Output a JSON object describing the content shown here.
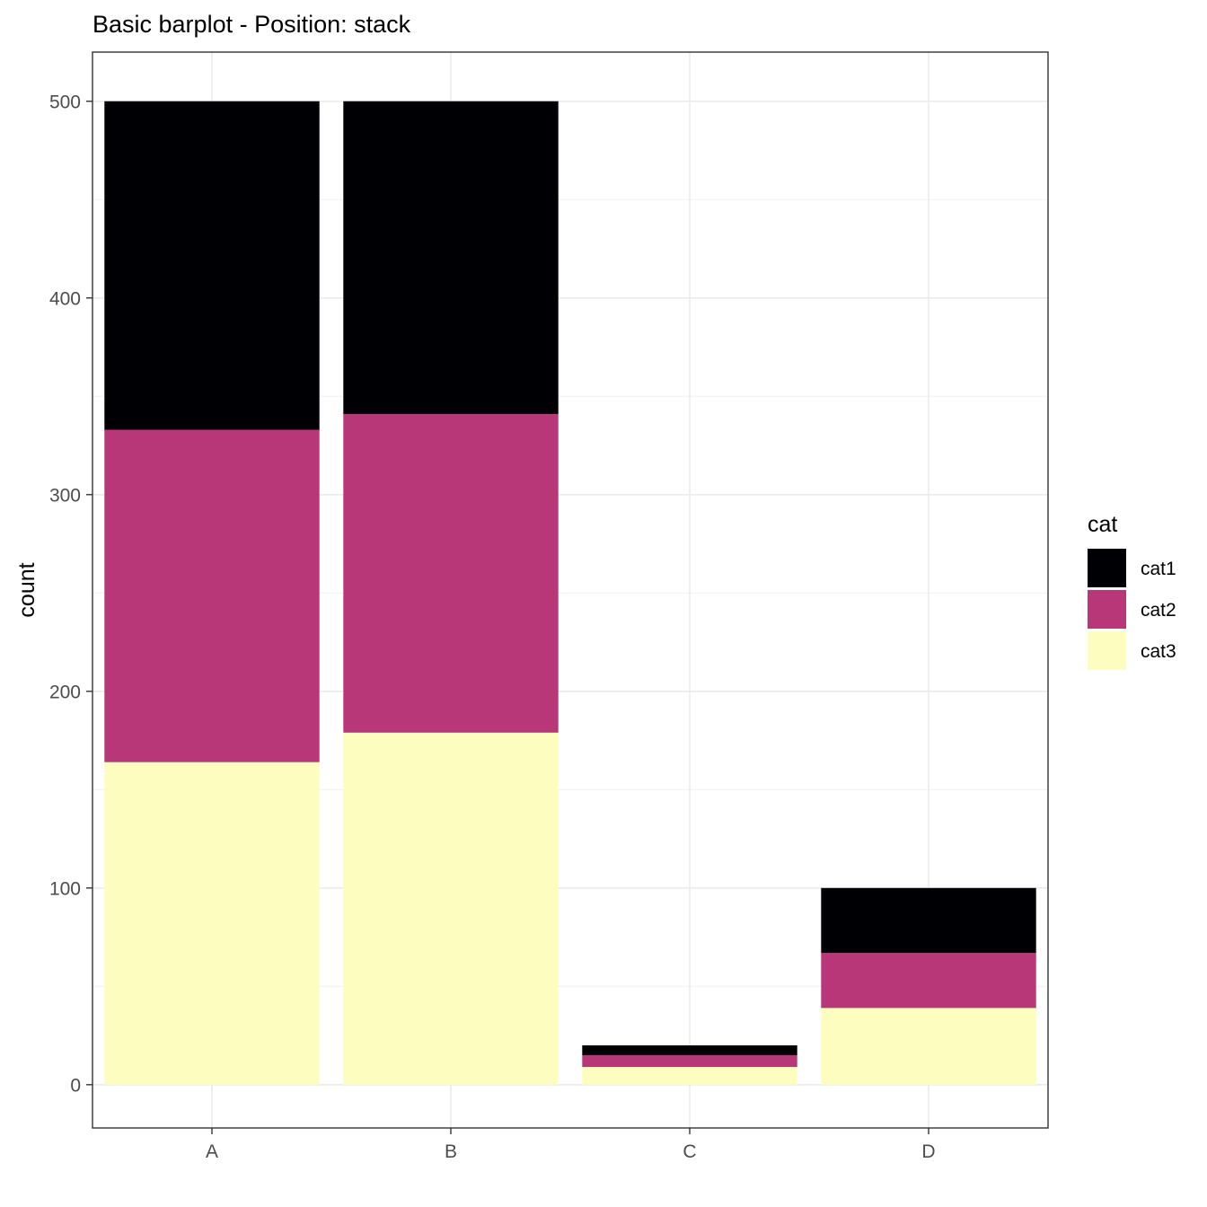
{
  "chart_data": {
    "type": "bar",
    "stacked": true,
    "title": "Basic barplot - Position: stack",
    "xlabel": "",
    "ylabel": "count",
    "categories": [
      "A",
      "B",
      "C",
      "D"
    ],
    "ylim": [
      -22,
      525
    ],
    "yticks": [
      0,
      100,
      200,
      300,
      400,
      500
    ],
    "grid": true,
    "series": [
      {
        "name": "cat3",
        "color": "#FCFDBF",
        "values": [
          164,
          179,
          9,
          39
        ]
      },
      {
        "name": "cat2",
        "color": "#B73779",
        "values": [
          169,
          162,
          6,
          28
        ]
      },
      {
        "name": "cat1",
        "color": "#000004",
        "values": [
          167,
          159,
          5,
          33
        ]
      }
    ],
    "legend": {
      "title": "cat",
      "position": "right",
      "items": [
        {
          "label": "cat1",
          "color": "#000004"
        },
        {
          "label": "cat2",
          "color": "#B73779"
        },
        {
          "label": "cat3",
          "color": "#FCFDBF"
        }
      ]
    }
  }
}
